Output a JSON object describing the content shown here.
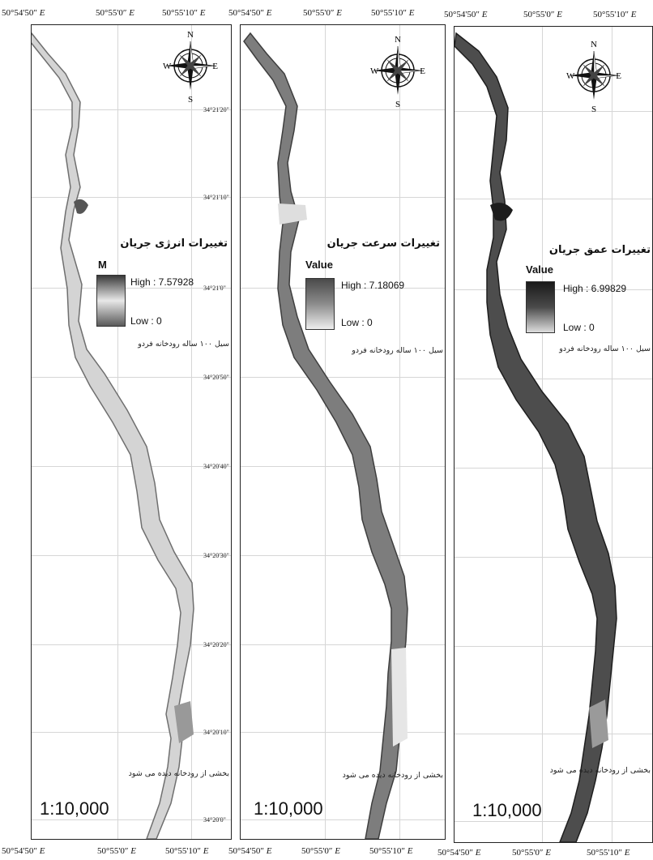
{
  "top_axis": [
    [
      "50°54'50″",
      "50°55'0″",
      "50°55'10″"
    ],
    [
      "50°54'50″",
      "50°55'0″",
      "50°55'10″"
    ],
    [
      "50°54'50″",
      "50°55'0″",
      "50°55'10″"
    ]
  ],
  "bottom_axis": [
    [
      "50°54'50″",
      "50°55'0″",
      "50°55'10″"
    ],
    [
      "50°54'50″",
      "50°55'0″",
      "50°55'10″"
    ],
    [
      "50°54'50″",
      "50°55'0″",
      "50°55'10″"
    ]
  ],
  "east_suffix": "E",
  "lat_labels": [
    "34°21'20\"",
    "34°21'10\"",
    "34°21'0\"",
    "34°20'50\"",
    "34°20'40\"",
    "34°20'30\"",
    "34°20'20\"",
    "34°20'10\"",
    "34°20'0\""
  ],
  "compass": {
    "n": "N",
    "s": "S",
    "e": "E",
    "w": "W"
  },
  "panels": [
    {
      "title": "تغییرات انرژی جریان",
      "unit": "M",
      "high": "High : 7.57928",
      "low": "Low : 0",
      "caption": "سیل ۱۰۰ ساله رودخانه فردو",
      "note": "بخشی از رودخانه دیده می شود",
      "scale": "1:10,000",
      "river_fill": "#d4d4d4",
      "river_edge": "#6f6f6f",
      "ramp_colors": [
        "#3a3a3a",
        "#e8e8e8",
        "#5a5a5a"
      ]
    },
    {
      "title": "تغییرات سرعت جریان",
      "unit": "Value",
      "high": "High : 7.18069",
      "low": "Low : 0",
      "caption": "سیل ۱۰۰ ساله رودخانه فردو",
      "note": "بخشی از رودخانه دیده می شود",
      "scale": "1:10,000",
      "river_fill": "#7d7d7d",
      "river_edge": "#3e3e3e",
      "ramp_colors": [
        "#4a4a4a",
        "#8c8c8c",
        "#eeeeee"
      ]
    },
    {
      "title": "تغییرات عمق جریان",
      "unit": "Value",
      "high": "High : 6.99829",
      "low": "Low : 0",
      "caption": "سیل ۱۰۰ ساله رودخانه فردو",
      "note": "بخشی از رودخانه دیده می شود",
      "scale": "1:10,000",
      "river_fill": "#4d4d4d",
      "river_edge": "#1e1e1e",
      "ramp_colors": [
        "#1a1a1a",
        "#4a4a4a",
        "#dddddd"
      ]
    }
  ]
}
